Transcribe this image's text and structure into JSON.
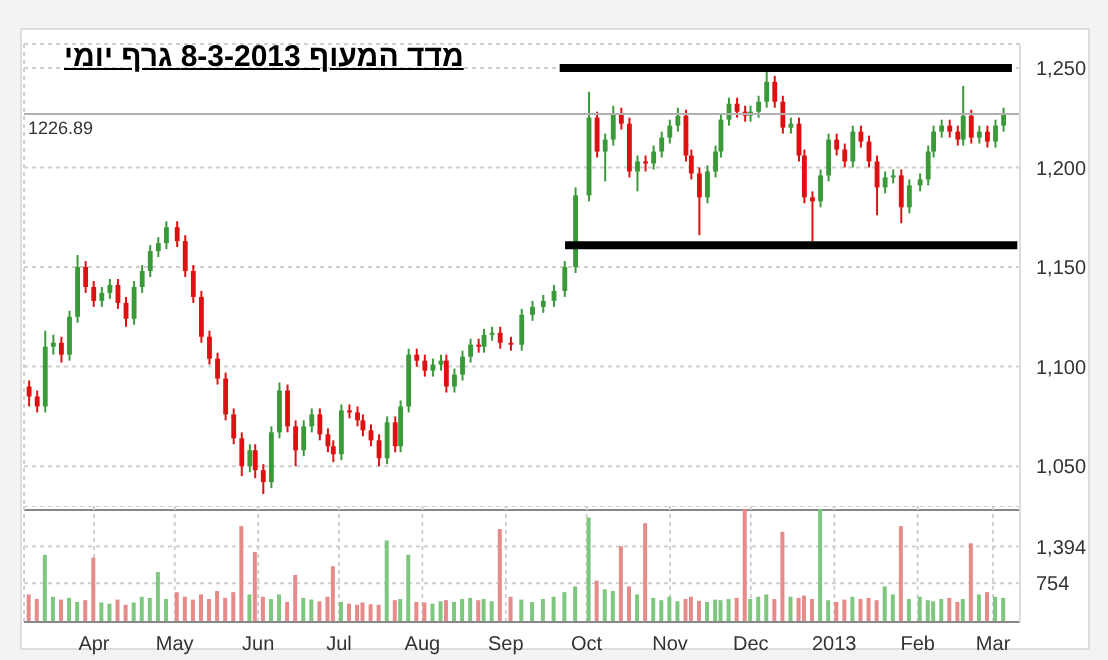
{
  "chart_data": [
    {
      "type": "candlestick",
      "title": "מדד המעוף 8-3-2013 גרף יומי",
      "x": [
        "2012-03-08",
        "2012-03-11",
        "2012-03-14",
        "2012-03-17",
        "2012-03-20",
        "2012-03-23",
        "2012-03-26",
        "2012-03-29",
        "2012-04-01",
        "2012-04-04",
        "2012-04-07",
        "2012-04-10",
        "2012-04-13",
        "2012-04-16",
        "2012-04-19",
        "2012-04-22",
        "2012-04-25",
        "2012-04-28",
        "2012-05-02",
        "2012-05-05",
        "2012-05-08",
        "2012-05-11",
        "2012-05-14",
        "2012-05-17",
        "2012-05-20",
        "2012-05-23",
        "2012-05-26",
        "2012-05-29",
        "2012-05-31",
        "2012-06-03",
        "2012-06-06",
        "2012-06-09",
        "2012-06-12",
        "2012-06-15",
        "2012-06-18",
        "2012-06-21",
        "2012-06-24",
        "2012-06-27",
        "2012-06-29",
        "2012-07-02",
        "2012-07-05",
        "2012-07-08",
        "2012-07-10",
        "2012-07-13",
        "2012-07-16",
        "2012-07-19",
        "2012-07-22",
        "2012-07-24",
        "2012-07-27",
        "2012-07-30",
        "2012-08-02",
        "2012-08-05",
        "2012-08-08",
        "2012-08-10",
        "2012-08-13",
        "2012-08-16",
        "2012-08-19",
        "2012-08-22",
        "2012-08-24",
        "2012-08-27",
        "2012-08-30",
        "2012-09-03",
        "2012-09-07",
        "2012-09-11",
        "2012-09-15",
        "2012-09-19",
        "2012-09-23",
        "2012-09-27",
        "2012-10-02",
        "2012-10-05",
        "2012-10-08",
        "2012-10-11",
        "2012-10-14",
        "2012-10-17",
        "2012-10-20",
        "2012-10-23",
        "2012-10-26",
        "2012-10-29",
        "2012-11-01",
        "2012-11-04",
        "2012-11-07",
        "2012-11-09",
        "2012-11-12",
        "2012-11-15",
        "2012-11-18",
        "2012-11-20",
        "2012-11-23",
        "2012-11-26",
        "2012-11-29",
        "2012-12-01",
        "2012-12-04",
        "2012-12-07",
        "2012-12-10",
        "2012-12-13",
        "2012-12-16",
        "2012-12-19",
        "2012-12-21",
        "2012-12-24",
        "2012-12-27",
        "2012-12-30",
        "2013-01-02",
        "2013-01-05",
        "2013-01-08",
        "2013-01-11",
        "2013-01-14",
        "2013-01-17",
        "2013-01-20",
        "2013-01-23",
        "2013-01-26",
        "2013-01-29",
        "2013-02-02",
        "2013-02-05",
        "2013-02-07",
        "2013-02-10",
        "2013-02-13",
        "2013-02-16",
        "2013-02-18",
        "2013-02-21",
        "2013-02-24",
        "2013-02-27",
        "2013-03-02",
        "2013-03-05"
      ],
      "ohlc": [
        [
          1090,
          1093,
          1080,
          1085
        ],
        [
          1085,
          1088,
          1077,
          1080
        ],
        [
          1080,
          1118,
          1077,
          1110
        ],
        [
          1110,
          1116,
          1106,
          1112
        ],
        [
          1112,
          1115,
          1102,
          1106
        ],
        [
          1106,
          1128,
          1103,
          1125
        ],
        [
          1125,
          1156,
          1122,
          1150
        ],
        [
          1150,
          1153,
          1137,
          1140
        ],
        [
          1140,
          1143,
          1130,
          1133
        ],
        [
          1133,
          1140,
          1130,
          1137
        ],
        [
          1137,
          1144,
          1134,
          1141
        ],
        [
          1141,
          1144,
          1129,
          1132
        ],
        [
          1132,
          1135,
          1120,
          1124
        ],
        [
          1124,
          1143,
          1121,
          1140
        ],
        [
          1140,
          1151,
          1137,
          1148
        ],
        [
          1148,
          1161,
          1145,
          1158
        ],
        [
          1158,
          1165,
          1155,
          1162
        ],
        [
          1162,
          1173,
          1159,
          1170
        ],
        [
          1170,
          1173,
          1160,
          1163
        ],
        [
          1163,
          1166,
          1145,
          1148
        ],
        [
          1148,
          1151,
          1132,
          1135
        ],
        [
          1135,
          1138,
          1112,
          1115
        ],
        [
          1115,
          1118,
          1101,
          1104
        ],
        [
          1104,
          1107,
          1091,
          1094
        ],
        [
          1094,
          1097,
          1073,
          1076
        ],
        [
          1076,
          1079,
          1061,
          1064
        ],
        [
          1064,
          1067,
          1045,
          1050
        ],
        [
          1050,
          1061,
          1047,
          1058
        ],
        [
          1058,
          1061,
          1044,
          1048
        ],
        [
          1048,
          1051,
          1036,
          1042
        ],
        [
          1042,
          1070,
          1039,
          1067
        ],
        [
          1067,
          1092,
          1064,
          1088
        ],
        [
          1088,
          1091,
          1067,
          1070
        ],
        [
          1070,
          1073,
          1050,
          1058
        ],
        [
          1058,
          1073,
          1055,
          1070
        ],
        [
          1070,
          1079,
          1067,
          1076
        ],
        [
          1076,
          1079,
          1063,
          1066
        ],
        [
          1066,
          1069,
          1057,
          1060
        ],
        [
          1060,
          1063,
          1052,
          1056
        ],
        [
          1056,
          1081,
          1053,
          1078
        ],
        [
          1078,
          1081,
          1074,
          1077
        ],
        [
          1077,
          1080,
          1070,
          1073
        ],
        [
          1073,
          1076,
          1065,
          1068
        ],
        [
          1068,
          1071,
          1060,
          1063
        ],
        [
          1063,
          1066,
          1050,
          1054
        ],
        [
          1054,
          1075,
          1051,
          1072
        ],
        [
          1072,
          1075,
          1057,
          1060
        ],
        [
          1060,
          1083,
          1057,
          1080
        ],
        [
          1080,
          1109,
          1077,
          1106
        ],
        [
          1106,
          1109,
          1100,
          1103
        ],
        [
          1103,
          1106,
          1095,
          1098
        ],
        [
          1098,
          1104,
          1095,
          1101
        ],
        [
          1101,
          1106,
          1098,
          1103
        ],
        [
          1103,
          1106,
          1087,
          1090
        ],
        [
          1090,
          1099,
          1087,
          1096
        ],
        [
          1096,
          1108,
          1093,
          1105
        ],
        [
          1105,
          1114,
          1102,
          1111
        ],
        [
          1111,
          1114,
          1107,
          1110
        ],
        [
          1110,
          1119,
          1107,
          1116
        ],
        [
          1116,
          1120,
          1113,
          1117
        ],
        [
          1117,
          1120,
          1109,
          1112
        ],
        [
          1112,
          1115,
          1108,
          1111
        ],
        [
          1111,
          1129,
          1108,
          1126
        ],
        [
          1126,
          1133,
          1123,
          1130
        ],
        [
          1130,
          1136,
          1127,
          1133
        ],
        [
          1133,
          1141,
          1130,
          1138
        ],
        [
          1138,
          1153,
          1135,
          1150
        ],
        [
          1150,
          1190,
          1147,
          1186
        ],
        [
          1186,
          1238,
          1183,
          1225
        ],
        [
          1225,
          1228,
          1205,
          1208
        ],
        [
          1208,
          1217,
          1193,
          1214
        ],
        [
          1214,
          1231,
          1211,
          1227
        ],
        [
          1227,
          1230,
          1219,
          1222
        ],
        [
          1222,
          1225,
          1195,
          1198
        ],
        [
          1198,
          1206,
          1188,
          1203
        ],
        [
          1203,
          1206,
          1198,
          1202
        ],
        [
          1202,
          1211,
          1199,
          1208
        ],
        [
          1208,
          1218,
          1205,
          1215
        ],
        [
          1215,
          1224,
          1212,
          1221
        ],
        [
          1221,
          1230,
          1218,
          1226
        ],
        [
          1226,
          1229,
          1203,
          1206
        ],
        [
          1206,
          1209,
          1194,
          1197
        ],
        [
          1197,
          1200,
          1166,
          1185
        ],
        [
          1185,
          1201,
          1182,
          1198
        ],
        [
          1198,
          1211,
          1195,
          1208
        ],
        [
          1208,
          1227,
          1205,
          1224
        ],
        [
          1224,
          1235,
          1221,
          1232
        ],
        [
          1232,
          1235,
          1225,
          1228
        ],
        [
          1228,
          1231,
          1223,
          1226
        ],
        [
          1226,
          1231,
          1223,
          1228
        ],
        [
          1228,
          1236,
          1225,
          1233
        ],
        [
          1233,
          1248,
          1230,
          1243
        ],
        [
          1243,
          1246,
          1230,
          1233
        ],
        [
          1233,
          1236,
          1217,
          1220
        ],
        [
          1220,
          1225,
          1217,
          1222
        ],
        [
          1222,
          1225,
          1203,
          1206
        ],
        [
          1206,
          1209,
          1182,
          1185
        ],
        [
          1185,
          1188,
          1163,
          1183
        ],
        [
          1183,
          1199,
          1180,
          1196
        ],
        [
          1196,
          1217,
          1193,
          1214
        ],
        [
          1214,
          1217,
          1206,
          1209
        ],
        [
          1209,
          1212,
          1200,
          1203
        ],
        [
          1203,
          1221,
          1200,
          1218
        ],
        [
          1218,
          1221,
          1210,
          1213
        ],
        [
          1213,
          1216,
          1200,
          1203
        ],
        [
          1203,
          1206,
          1176,
          1190
        ],
        [
          1190,
          1198,
          1187,
          1195
        ],
        [
          1195,
          1199,
          1192,
          1196
        ],
        [
          1196,
          1199,
          1172,
          1180
        ],
        [
          1180,
          1194,
          1177,
          1191
        ],
        [
          1191,
          1197,
          1188,
          1194
        ],
        [
          1194,
          1211,
          1191,
          1208
        ],
        [
          1208,
          1221,
          1205,
          1218
        ],
        [
          1218,
          1224,
          1215,
          1221
        ],
        [
          1221,
          1224,
          1215,
          1218
        ],
        [
          1218,
          1221,
          1211,
          1214
        ],
        [
          1214,
          1241,
          1211,
          1226
        ],
        [
          1226,
          1229,
          1212,
          1215
        ],
        [
          1215,
          1221,
          1212,
          1218
        ],
        [
          1218,
          1221,
          1210,
          1213
        ],
        [
          1213,
          1224,
          1210,
          1221
        ],
        [
          1221,
          1230,
          1218,
          1227
        ]
      ],
      "colors": [
        "#dd1111",
        "#dd1111",
        "#3a9a3a",
        "#3a9a3a",
        "#dd1111",
        "#3a9a3a",
        "#3a9a3a",
        "#dd1111",
        "#dd1111",
        "#3a9a3a",
        "#3a9a3a",
        "#dd1111",
        "#dd1111",
        "#3a9a3a",
        "#3a9a3a",
        "#3a9a3a",
        "#3a9a3a",
        "#3a9a3a",
        "#dd1111",
        "#dd1111",
        "#dd1111",
        "#dd1111",
        "#dd1111",
        "#dd1111",
        "#dd1111",
        "#dd1111",
        "#dd1111",
        "#3a9a3a",
        "#dd1111",
        "#dd1111",
        "#3a9a3a",
        "#3a9a3a",
        "#dd1111",
        "#dd1111",
        "#3a9a3a",
        "#3a9a3a",
        "#dd1111",
        "#dd1111",
        "#dd1111",
        "#3a9a3a",
        "#dd1111",
        "#dd1111",
        "#dd1111",
        "#dd1111",
        "#dd1111",
        "#3a9a3a",
        "#dd1111",
        "#3a9a3a",
        "#3a9a3a",
        "#dd1111",
        "#dd1111",
        "#3a9a3a",
        "#3a9a3a",
        "#dd1111",
        "#3a9a3a",
        "#3a9a3a",
        "#3a9a3a",
        "#dd1111",
        "#3a9a3a",
        "#3a9a3a",
        "#dd1111",
        "#dd1111",
        "#3a9a3a",
        "#3a9a3a",
        "#3a9a3a",
        "#3a9a3a",
        "#3a9a3a",
        "#3a9a3a",
        "#3a9a3a",
        "#dd1111",
        "#3a9a3a",
        "#3a9a3a",
        "#dd1111",
        "#dd1111",
        "#3a9a3a",
        "#dd1111",
        "#3a9a3a",
        "#3a9a3a",
        "#3a9a3a",
        "#3a9a3a",
        "#dd1111",
        "#dd1111",
        "#dd1111",
        "#3a9a3a",
        "#3a9a3a",
        "#3a9a3a",
        "#3a9a3a",
        "#dd1111",
        "#dd1111",
        "#3a9a3a",
        "#3a9a3a",
        "#3a9a3a",
        "#dd1111",
        "#dd1111",
        "#3a9a3a",
        "#dd1111",
        "#dd1111",
        "#dd1111",
        "#3a9a3a",
        "#3a9a3a",
        "#dd1111",
        "#dd1111",
        "#3a9a3a",
        "#dd1111",
        "#dd1111",
        "#dd1111",
        "#3a9a3a",
        "#3a9a3a",
        "#dd1111",
        "#3a9a3a",
        "#3a9a3a",
        "#3a9a3a",
        "#3a9a3a",
        "#3a9a3a",
        "#dd1111",
        "#dd1111",
        "#3a9a3a",
        "#dd1111",
        "#3a9a3a",
        "#dd1111",
        "#3a9a3a",
        "#3a9a3a"
      ],
      "series": [
        {
          "type": "line",
          "color": "#000000",
          "x": [
            "2012-09-21",
            "2013-03-08"
          ],
          "values": [
            1250,
            1250
          ]
        },
        {
          "type": "line",
          "color": "#000000",
          "x": [
            "2012-09-23",
            "2013-03-10"
          ],
          "values": [
            1161,
            1161
          ]
        }
      ],
      "ref_lines": [
        {
          "axis": "y",
          "value": 1226.89,
          "label": "1226.89",
          "color": "#b0b0b0"
        }
      ],
      "xlim": [
        "2012-03-06",
        "2013-03-11"
      ],
      "xticks": [
        {
          "value": "2012-04-01",
          "label": null
        },
        {
          "value": "2012-05-01",
          "label": null
        },
        {
          "value": "2012-06-01",
          "label": null
        },
        {
          "value": "2012-07-01",
          "label": null
        },
        {
          "value": "2012-08-01",
          "label": null
        },
        {
          "value": "2012-09-01",
          "label": null
        },
        {
          "value": "2012-10-01",
          "label": null
        },
        {
          "value": "2012-11-01",
          "label": null
        },
        {
          "value": "2012-12-01",
          "label": null
        },
        {
          "value": "2013-01-01",
          "label": null
        },
        {
          "value": "2013-02-01",
          "label": null
        },
        {
          "value": "2013-03-01",
          "label": null
        }
      ],
      "ylim": [
        1028,
        1262
      ],
      "yticks": [
        {
          "value": 1050,
          "label": "1,050"
        },
        {
          "value": 1100,
          "label": "1,100"
        },
        {
          "value": 1150,
          "label": "1,150"
        },
        {
          "value": 1200,
          "label": "1,200"
        },
        {
          "value": 1250,
          "label": "1,250"
        }
      ],
      "grid": true,
      "tick_labels": "y"
    },
    {
      "type": "bar",
      "x": [
        "2012-03-08",
        "2012-03-11",
        "2012-03-14",
        "2012-03-17",
        "2012-03-20",
        "2012-03-23",
        "2012-03-26",
        "2012-03-29",
        "2012-04-01",
        "2012-04-04",
        "2012-04-07",
        "2012-04-10",
        "2012-04-13",
        "2012-04-16",
        "2012-04-19",
        "2012-04-22",
        "2012-04-25",
        "2012-04-28",
        "2012-05-02",
        "2012-05-05",
        "2012-05-08",
        "2012-05-11",
        "2012-05-14",
        "2012-05-17",
        "2012-05-20",
        "2012-05-23",
        "2012-05-26",
        "2012-05-29",
        "2012-05-31",
        "2012-06-03",
        "2012-06-06",
        "2012-06-09",
        "2012-06-12",
        "2012-06-15",
        "2012-06-18",
        "2012-06-21",
        "2012-06-24",
        "2012-06-27",
        "2012-06-29",
        "2012-07-02",
        "2012-07-05",
        "2012-07-08",
        "2012-07-10",
        "2012-07-13",
        "2012-07-16",
        "2012-07-19",
        "2012-07-22",
        "2012-07-24",
        "2012-07-27",
        "2012-07-30",
        "2012-08-02",
        "2012-08-05",
        "2012-08-08",
        "2012-08-10",
        "2012-08-13",
        "2012-08-16",
        "2012-08-19",
        "2012-08-22",
        "2012-08-24",
        "2012-08-27",
        "2012-08-30",
        "2012-09-03",
        "2012-09-07",
        "2012-09-11",
        "2012-09-15",
        "2012-09-19",
        "2012-09-23",
        "2012-09-27",
        "2012-10-02",
        "2012-10-05",
        "2012-10-08",
        "2012-10-11",
        "2012-10-14",
        "2012-10-17",
        "2012-10-20",
        "2012-10-23",
        "2012-10-26",
        "2012-10-29",
        "2012-11-01",
        "2012-11-04",
        "2012-11-07",
        "2012-11-09",
        "2012-11-12",
        "2012-11-15",
        "2012-11-18",
        "2012-11-20",
        "2012-11-23",
        "2012-11-26",
        "2012-11-29",
        "2012-12-01",
        "2012-12-04",
        "2012-12-07",
        "2012-12-10",
        "2012-12-13",
        "2012-12-16",
        "2012-12-19",
        "2012-12-21",
        "2012-12-24",
        "2012-12-27",
        "2012-12-30",
        "2013-01-02",
        "2013-01-05",
        "2013-01-08",
        "2013-01-11",
        "2013-01-14",
        "2013-01-17",
        "2013-01-20",
        "2013-01-23",
        "2013-01-26",
        "2013-01-29",
        "2013-02-02",
        "2013-02-05",
        "2013-02-07",
        "2013-02-10",
        "2013-02-13",
        "2013-02-16",
        "2013-02-18",
        "2013-02-21",
        "2013-02-24",
        "2013-02-27",
        "2013-03-02",
        "2013-03-05"
      ],
      "values": [
        560,
        480,
        1250,
        520,
        470,
        500,
        430,
        460,
        1200,
        420,
        400,
        470,
        380,
        420,
        520,
        500,
        950,
        480,
        600,
        520,
        470,
        560,
        480,
        620,
        500,
        600,
        1750,
        560,
        1300,
        520,
        480,
        560,
        430,
        900,
        500,
        470,
        440,
        520,
        1050,
        430,
        400,
        380,
        420,
        390,
        380,
        1500,
        460,
        480,
        1250,
        430,
        420,
        400,
        440,
        460,
        430,
        480,
        500,
        460,
        480,
        440,
        1700,
        520,
        470,
        430,
        480,
        520,
        600,
        700,
        1900,
        800,
        650,
        620,
        1400,
        700,
        560,
        1800,
        500,
        460,
        520,
        440,
        480,
        520,
        450,
        430,
        470,
        460,
        480,
        500,
        2050,
        480,
        520,
        560,
        480,
        1650,
        520,
        500,
        540,
        480,
        2050,
        460,
        430,
        470,
        520,
        480,
        500,
        460,
        700,
        560,
        1750,
        480,
        520,
        460,
        440,
        480,
        500,
        430,
        480,
        1450,
        560,
        600,
        520,
        500
      ],
      "colors": [
        "#e68a8a",
        "#e68a8a",
        "#7fc67f",
        "#7fc67f",
        "#e68a8a",
        "#7fc67f",
        "#7fc67f",
        "#e68a8a",
        "#e68a8a",
        "#7fc67f",
        "#7fc67f",
        "#e68a8a",
        "#e68a8a",
        "#7fc67f",
        "#7fc67f",
        "#7fc67f",
        "#7fc67f",
        "#7fc67f",
        "#e68a8a",
        "#e68a8a",
        "#e68a8a",
        "#e68a8a",
        "#e68a8a",
        "#e68a8a",
        "#e68a8a",
        "#e68a8a",
        "#e68a8a",
        "#7fc67f",
        "#e68a8a",
        "#e68a8a",
        "#7fc67f",
        "#7fc67f",
        "#e68a8a",
        "#e68a8a",
        "#7fc67f",
        "#7fc67f",
        "#e68a8a",
        "#e68a8a",
        "#e68a8a",
        "#7fc67f",
        "#e68a8a",
        "#e68a8a",
        "#e68a8a",
        "#e68a8a",
        "#e68a8a",
        "#7fc67f",
        "#e68a8a",
        "#7fc67f",
        "#7fc67f",
        "#e68a8a",
        "#e68a8a",
        "#7fc67f",
        "#7fc67f",
        "#e68a8a",
        "#7fc67f",
        "#7fc67f",
        "#7fc67f",
        "#e68a8a",
        "#7fc67f",
        "#7fc67f",
        "#e68a8a",
        "#e68a8a",
        "#7fc67f",
        "#7fc67f",
        "#7fc67f",
        "#7fc67f",
        "#7fc67f",
        "#7fc67f",
        "#7fc67f",
        "#e68a8a",
        "#7fc67f",
        "#7fc67f",
        "#e68a8a",
        "#e68a8a",
        "#7fc67f",
        "#e68a8a",
        "#7fc67f",
        "#7fc67f",
        "#7fc67f",
        "#7fc67f",
        "#e68a8a",
        "#e68a8a",
        "#e68a8a",
        "#7fc67f",
        "#7fc67f",
        "#7fc67f",
        "#7fc67f",
        "#e68a8a",
        "#e68a8a",
        "#7fc67f",
        "#7fc67f",
        "#7fc67f",
        "#e68a8a",
        "#e68a8a",
        "#7fc67f",
        "#e68a8a",
        "#e68a8a",
        "#e68a8a",
        "#7fc67f",
        "#7fc67f",
        "#e68a8a",
        "#e68a8a",
        "#7fc67f",
        "#e68a8a",
        "#e68a8a",
        "#e68a8a",
        "#7fc67f",
        "#7fc67f",
        "#e68a8a",
        "#7fc67f",
        "#7fc67f",
        "#7fc67f",
        "#7fc67f",
        "#7fc67f",
        "#e68a8a",
        "#e68a8a",
        "#7fc67f",
        "#e68a8a",
        "#7fc67f",
        "#e68a8a",
        "#7fc67f",
        "#7fc67f"
      ],
      "xlim": [
        "2012-03-06",
        "2013-03-11"
      ],
      "xticks": [
        {
          "value": "2012-04-01",
          "label": "Apr"
        },
        {
          "value": "2012-05-01",
          "label": "May"
        },
        {
          "value": "2012-06-01",
          "label": "Jun"
        },
        {
          "value": "2012-07-01",
          "label": "Jul"
        },
        {
          "value": "2012-08-01",
          "label": "Aug"
        },
        {
          "value": "2012-09-01",
          "label": "Sep"
        },
        {
          "value": "2012-10-01",
          "label": "Oct"
        },
        {
          "value": "2012-11-01",
          "label": "Nov"
        },
        {
          "value": "2012-12-01",
          "label": "Dec"
        },
        {
          "value": "2013-01-01",
          "label": "2013"
        },
        {
          "value": "2013-02-01",
          "label": "Feb"
        },
        {
          "value": "2013-03-01",
          "label": "Mar"
        }
      ],
      "ylim": [
        80,
        2100
      ],
      "yticks": [
        754,
        {
          "value": 1394,
          "label": "1,394"
        }
      ],
      "grid": true
    }
  ]
}
